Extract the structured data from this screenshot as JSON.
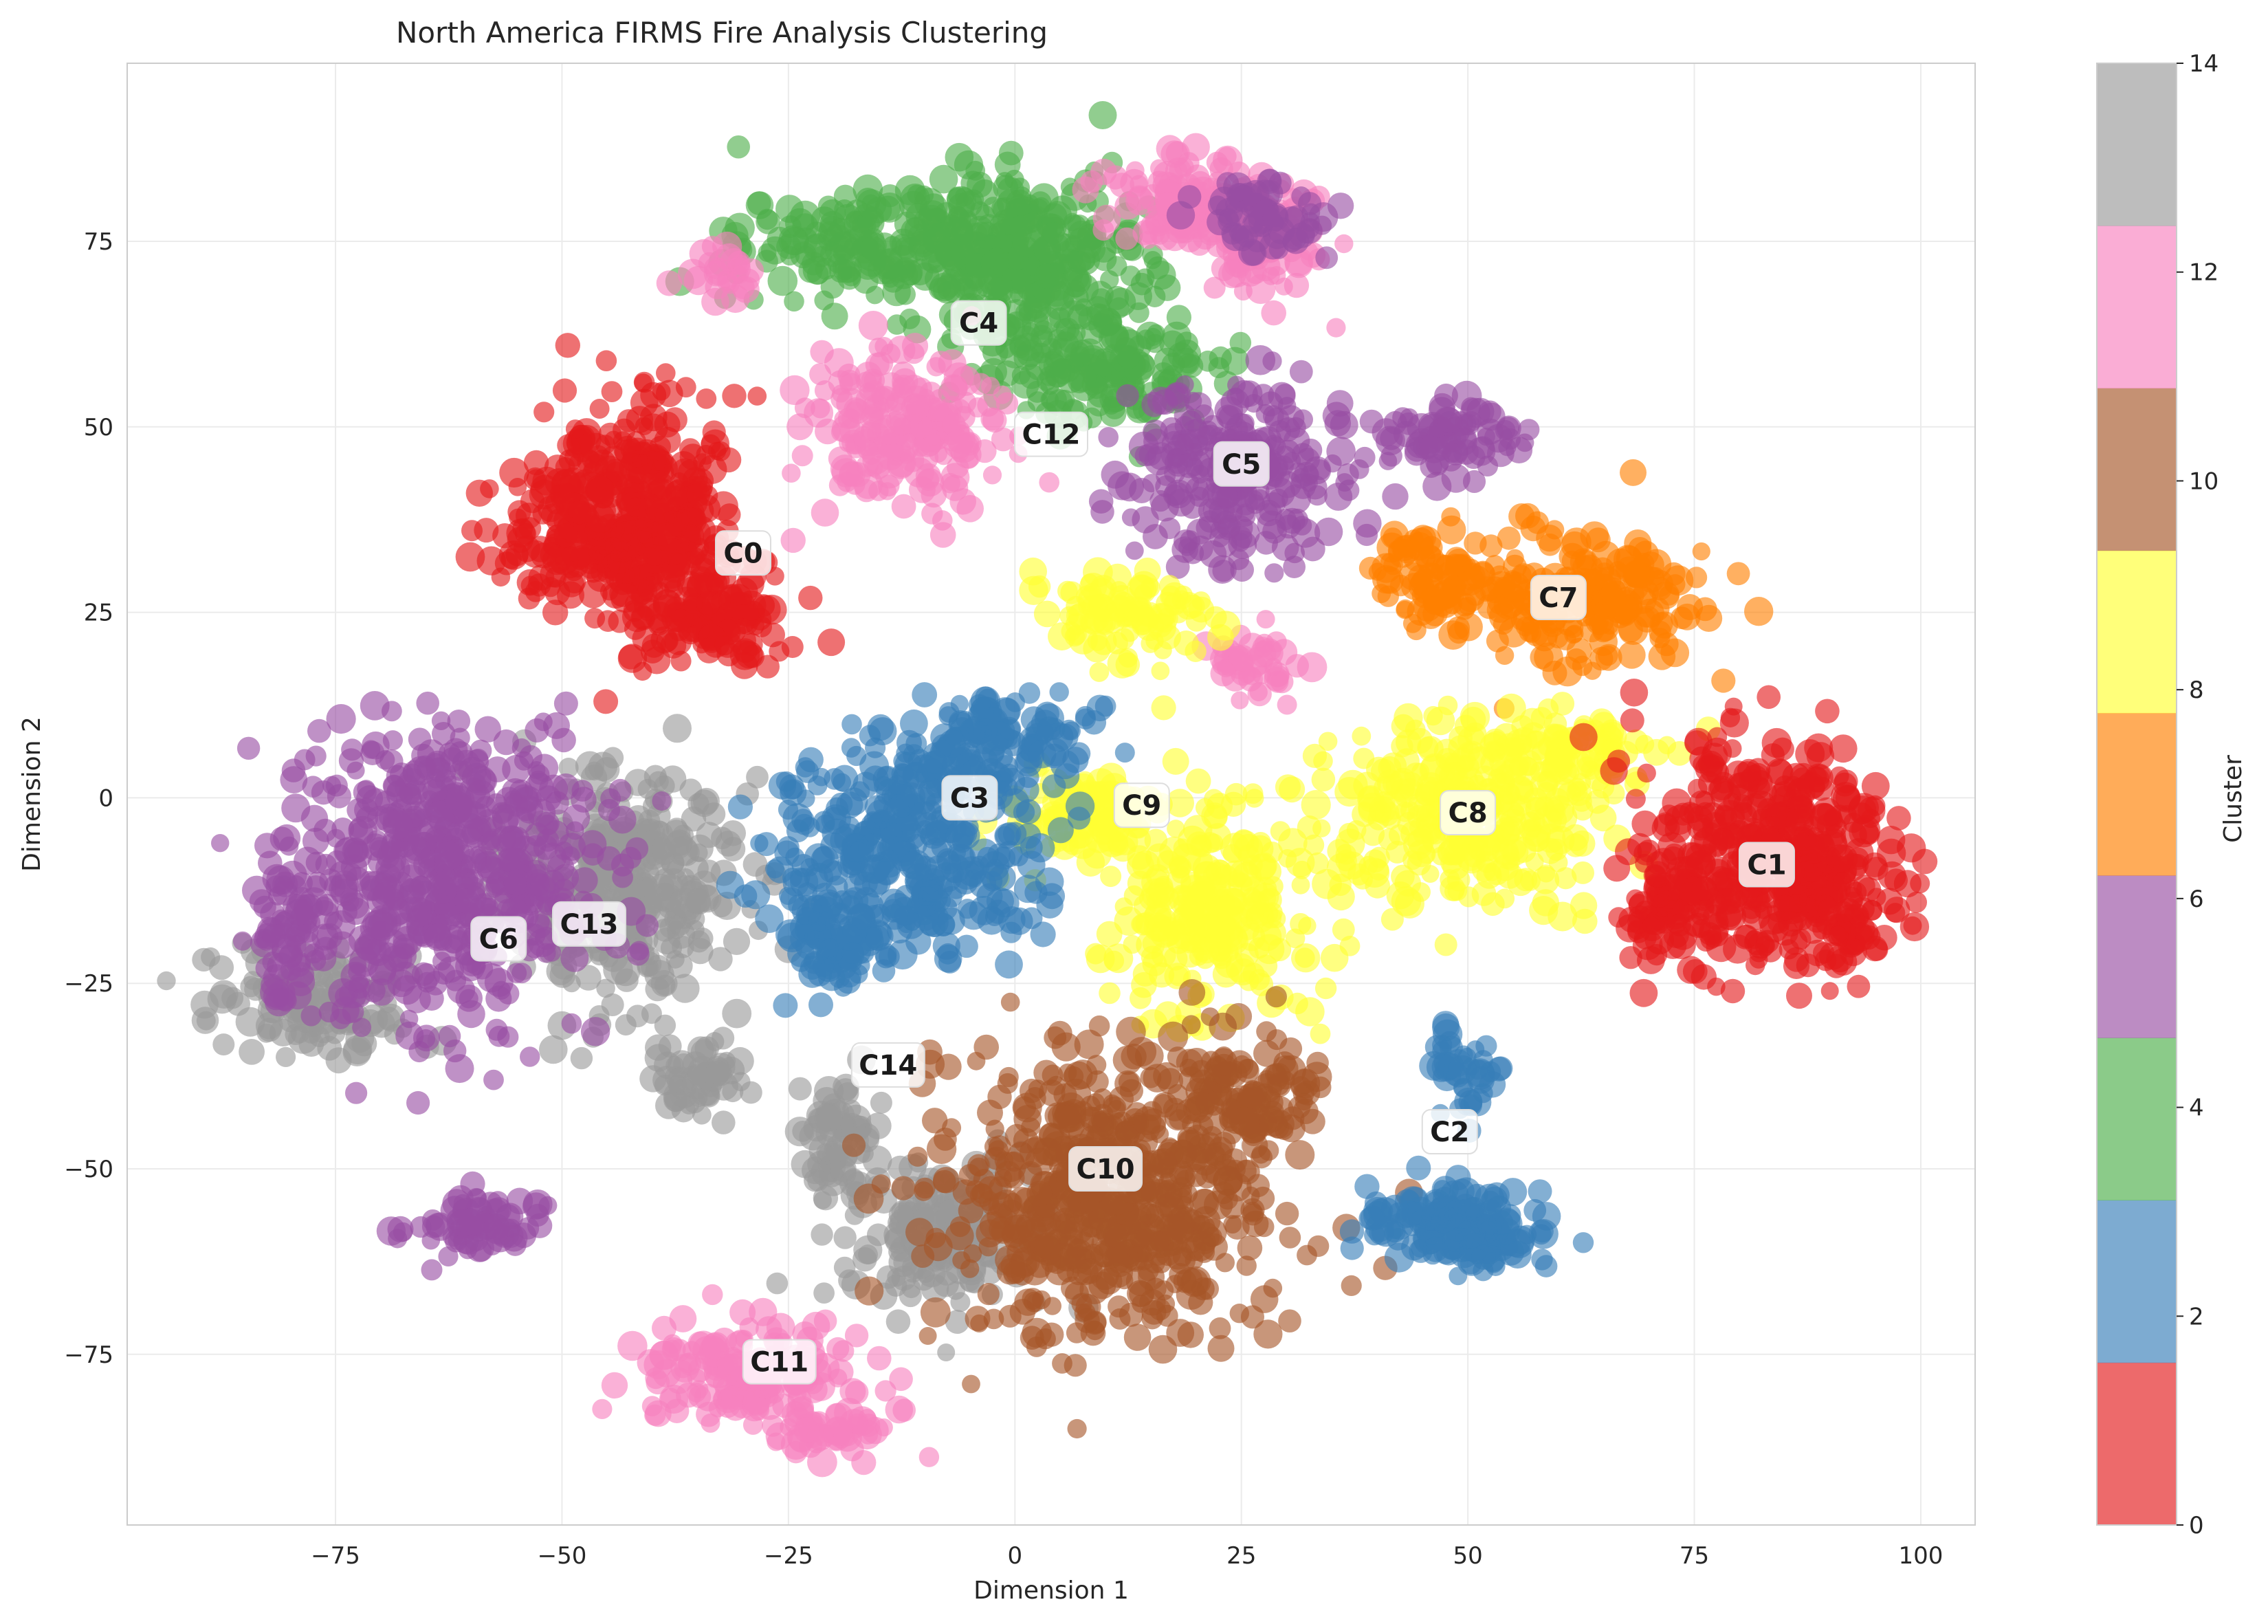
{
  "chart_data": {
    "type": "scatter",
    "title": "North America FIRMS Fire Analysis Clustering",
    "xlabel": "Dimension 1",
    "ylabel": "Dimension 2",
    "xlim": [
      -98,
      106
    ],
    "ylim": [
      -98,
      99
    ],
    "xticks": [
      -75,
      -50,
      -25,
      0,
      25,
      50,
      75,
      100
    ],
    "xtick_labels": [
      "−75",
      "−50",
      "−25",
      "0",
      "25",
      "50",
      "75",
      "100"
    ],
    "yticks": [
      -75,
      -50,
      -25,
      0,
      25,
      50,
      75
    ],
    "ytick_labels": [
      "−75",
      "−50",
      "−25",
      "0",
      "25",
      "50",
      "75"
    ],
    "grid": true,
    "colorbar": {
      "label": "Cluster",
      "range": [
        0,
        14
      ],
      "ticks": [
        0,
        2,
        4,
        6,
        8,
        10,
        12,
        14
      ],
      "tick_labels": [
        "0",
        "2",
        "4",
        "6",
        "8",
        "10",
        "12",
        "14"
      ],
      "colors": [
        "#e41a1c",
        "#377eb8",
        "#4daf4a",
        "#984ea3",
        "#ff7f00",
        "#ffff33",
        "#a65628",
        "#f781bf",
        "#999999"
      ]
    },
    "clusters": [
      {
        "label": "C0",
        "cluster": 0,
        "color": "#e41a1c",
        "centroid": [
          -30,
          33
        ],
        "blobs": [
          [
            -42,
            42,
            10,
            11
          ],
          [
            -47,
            34,
            9,
            7
          ],
          [
            -33,
            24,
            9,
            6
          ],
          [
            -38,
            32,
            7,
            7
          ]
        ]
      },
      {
        "label": "C1",
        "cluster": 1,
        "color": "#e41a1c",
        "centroid": [
          83,
          -9
        ],
        "blobs": [
          [
            82,
            -6,
            12,
            13
          ],
          [
            90,
            -14,
            7,
            9
          ],
          [
            73,
            -16,
            6,
            6
          ]
        ]
      },
      {
        "label": "C2",
        "cluster": 2,
        "color": "#377eb8",
        "centroid": [
          48,
          -45
        ],
        "blobs": [
          [
            50,
            -58,
            9,
            6
          ],
          [
            50,
            -37,
            4,
            5
          ],
          [
            45,
            -57,
            6,
            4
          ]
        ]
      },
      {
        "label": "C3",
        "cluster": 3,
        "color": "#377eb8",
        "centroid": [
          -5,
          0
        ],
        "blobs": [
          [
            -12,
            -7,
            13,
            13
          ],
          [
            -2,
            7,
            9,
            6
          ],
          [
            -20,
            -20,
            6,
            6
          ]
        ]
      },
      {
        "label": "C4",
        "cluster": 4,
        "color": "#4daf4a",
        "centroid": [
          -4,
          64
        ],
        "blobs": [
          [
            -12,
            74,
            17,
            7
          ],
          [
            2,
            72,
            10,
            11
          ],
          [
            10,
            58,
            11,
            7
          ]
        ]
      },
      {
        "label": "C5",
        "cluster": 5,
        "color": "#984ea3",
        "centroid": [
          25,
          45
        ],
        "blobs": [
          [
            25,
            44,
            11,
            11
          ],
          [
            48,
            49,
            7,
            5
          ],
          [
            28,
            78,
            6,
            5
          ]
        ]
      },
      {
        "label": "C6",
        "cluster": 6,
        "color": "#984ea3",
        "centroid": [
          -57,
          -19
        ],
        "blobs": [
          [
            -63,
            -10,
            15,
            18
          ],
          [
            -60,
            -58,
            8,
            4
          ],
          [
            -80,
            -18,
            4,
            8
          ]
        ]
      },
      {
        "label": "C7",
        "cluster": 7,
        "color": "#ff7f00",
        "centroid": [
          60,
          27
        ],
        "blobs": [
          [
            62,
            27,
            13,
            8
          ],
          [
            46,
            30,
            6,
            6
          ]
        ]
      },
      {
        "label": "C8",
        "cluster": 8,
        "color": "#ffff33",
        "centroid": [
          50,
          -2
        ],
        "blobs": [
          [
            50,
            -2,
            13,
            11
          ],
          [
            62,
            6,
            8,
            5
          ]
        ]
      },
      {
        "label": "C9",
        "cluster": 9,
        "color": "#ffff33",
        "centroid": [
          14,
          -1
        ],
        "blobs": [
          [
            22,
            -15,
            10,
            12
          ],
          [
            8,
            -2,
            8,
            6
          ],
          [
            12,
            24,
            8,
            6
          ]
        ]
      },
      {
        "label": "C10",
        "cluster": 10,
        "color": "#a65628",
        "centroid": [
          10,
          -50
        ],
        "blobs": [
          [
            10,
            -54,
            17,
            17
          ],
          [
            26,
            -40,
            8,
            6
          ]
        ]
      },
      {
        "label": "C11",
        "cluster": 11,
        "color": "#f781bf",
        "centroid": [
          -26,
          -76
        ],
        "blobs": [
          [
            -29,
            -78,
            11,
            7
          ],
          [
            -20,
            -86,
            6,
            3
          ]
        ]
      },
      {
        "label": "C12",
        "cluster": 12,
        "color": "#f781bf",
        "centroid": [
          4,
          49
        ],
        "blobs": [
          [
            -12,
            50,
            10,
            10
          ],
          [
            18,
            80,
            8,
            6
          ],
          [
            27,
            75,
            6,
            7
          ],
          [
            26,
            18,
            5,
            4
          ],
          [
            -32,
            70,
            4,
            3
          ]
        ]
      },
      {
        "label": "C13",
        "cluster": 13,
        "color": "#999999",
        "centroid": [
          -47,
          -17
        ],
        "blobs": [
          [
            -44,
            -12,
            12,
            14
          ],
          [
            -78,
            -28,
            10,
            6
          ],
          [
            -35,
            -38,
            5,
            5
          ]
        ]
      },
      {
        "label": "C14",
        "cluster": 14,
        "color": "#999999",
        "centroid": [
          -14,
          -36
        ],
        "blobs": [
          [
            -8,
            -58,
            10,
            9
          ],
          [
            -20,
            -45,
            4,
            7
          ]
        ]
      }
    ]
  }
}
